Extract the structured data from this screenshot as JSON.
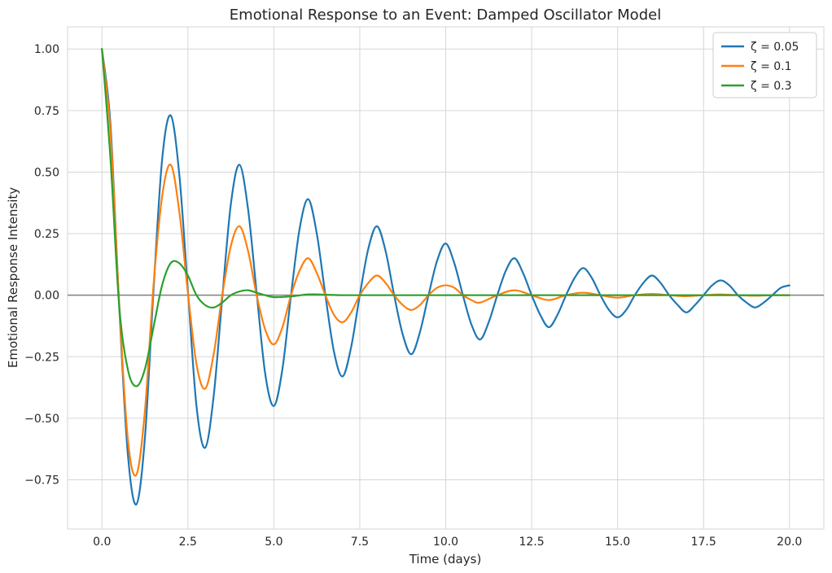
{
  "chart_data": {
    "type": "line",
    "title": "Emotional Response to an Event: Damped Oscillator Model",
    "xlabel": "Time (days)",
    "ylabel": "Emotional Response Intensity",
    "xlim": [
      -1.0,
      21.0
    ],
    "ylim": [
      -0.95,
      1.09
    ],
    "x_ticks": [
      0.0,
      2.5,
      5.0,
      7.5,
      10.0,
      12.5,
      15.0,
      17.5,
      20.0
    ],
    "x_tick_labels": [
      "0.0",
      "2.5",
      "5.0",
      "7.5",
      "10.0",
      "12.5",
      "15.0",
      "17.5",
      "20.0"
    ],
    "y_ticks": [
      -0.75,
      -0.5,
      -0.25,
      0.0,
      0.25,
      0.5,
      0.75,
      1.0
    ],
    "y_tick_labels": [
      "−0.75",
      "−0.50",
      "−0.25",
      "0.00",
      "0.25",
      "0.50",
      "0.75",
      "1.00"
    ],
    "grid": true,
    "legend_position": "top-right",
    "reference_line": {
      "y": 0.0,
      "color": "#808080"
    },
    "series": [
      {
        "name": "ζ = 0.05",
        "color": "#1f77b4",
        "x": [
          0,
          0.25,
          0.5,
          0.75,
          1.0,
          1.25,
          1.5,
          1.75,
          2.0,
          2.25,
          2.5,
          2.75,
          3.0,
          3.25,
          3.5,
          3.75,
          4.0,
          4.25,
          4.5,
          4.75,
          5.0,
          5.25,
          5.5,
          5.75,
          6.0,
          6.25,
          6.5,
          6.75,
          7.0,
          7.25,
          7.5,
          7.75,
          8.0,
          8.25,
          8.5,
          8.75,
          9.0,
          9.25,
          9.5,
          9.75,
          10.0,
          10.25,
          10.5,
          10.75,
          11.0,
          11.25,
          11.5,
          11.75,
          12.0,
          12.25,
          12.5,
          12.75,
          13.0,
          13.25,
          13.5,
          13.75,
          14.0,
          14.25,
          14.5,
          14.75,
          15.0,
          15.25,
          15.5,
          15.75,
          16.0,
          16.25,
          16.5,
          16.75,
          17.0,
          17.25,
          17.5,
          17.75,
          18.0,
          18.25,
          18.5,
          18.75,
          19.0,
          19.25,
          19.5,
          19.75,
          20.0
        ],
        "y": [
          1.0,
          0.69,
          -0.04,
          -0.64,
          -0.85,
          -0.58,
          0.02,
          0.55,
          0.73,
          0.49,
          0.02,
          -0.45,
          -0.62,
          -0.41,
          -0.01,
          0.37,
          0.53,
          0.35,
          0.01,
          -0.32,
          -0.45,
          -0.3,
          0.0,
          0.27,
          0.39,
          0.25,
          0.0,
          -0.23,
          -0.33,
          -0.21,
          0.0,
          0.19,
          0.28,
          0.18,
          0.0,
          -0.16,
          -0.24,
          -0.15,
          0.0,
          0.14,
          0.21,
          0.13,
          0.0,
          -0.12,
          -0.18,
          -0.11,
          0.0,
          0.1,
          0.15,
          0.09,
          0.0,
          -0.08,
          -0.13,
          -0.08,
          0.0,
          0.07,
          0.11,
          0.07,
          0.0,
          -0.06,
          -0.09,
          -0.06,
          0.0,
          0.05,
          0.08,
          0.05,
          0.0,
          -0.04,
          -0.07,
          -0.04,
          0.0,
          0.04,
          0.06,
          0.04,
          0.0,
          -0.03,
          -0.05,
          -0.03,
          0.0,
          0.03,
          0.04
        ]
      },
      {
        "name": "ζ = 0.1",
        "color": "#ff7f0e",
        "x": [
          0,
          0.25,
          0.5,
          0.75,
          1.0,
          1.25,
          1.5,
          1.75,
          2.0,
          2.25,
          2.5,
          2.75,
          3.0,
          3.25,
          3.5,
          3.75,
          4.0,
          4.25,
          4.5,
          4.75,
          5.0,
          5.25,
          5.5,
          5.75,
          6.0,
          6.25,
          6.5,
          6.75,
          7.0,
          7.25,
          7.5,
          7.75,
          8.0,
          8.25,
          8.5,
          8.75,
          9.0,
          9.25,
          9.5,
          9.75,
          10.0,
          10.25,
          10.5,
          10.75,
          11.0,
          11.5,
          12.0,
          12.5,
          13.0,
          13.5,
          14.0,
          14.5,
          15.0,
          15.5,
          16.0,
          16.5,
          17.0,
          17.5,
          18.0,
          18.5,
          19.0,
          19.5,
          20.0
        ],
        "y": [
          1.0,
          0.66,
          -0.03,
          -0.58,
          -0.73,
          -0.47,
          0.04,
          0.4,
          0.53,
          0.34,
          0.01,
          -0.28,
          -0.38,
          -0.24,
          0.0,
          0.2,
          0.28,
          0.18,
          0.0,
          -0.14,
          -0.2,
          -0.13,
          0.0,
          0.1,
          0.15,
          0.09,
          0.0,
          -0.08,
          -0.11,
          -0.07,
          0.0,
          0.05,
          0.08,
          0.05,
          0.0,
          -0.04,
          -0.06,
          -0.04,
          0.0,
          0.03,
          0.04,
          0.03,
          0.0,
          -0.02,
          -0.03,
          0.0,
          0.02,
          0.0,
          -0.02,
          0.0,
          0.01,
          0.0,
          -0.01,
          0.0,
          0.005,
          0.0,
          -0.004,
          0.0,
          0.003,
          0.0,
          -0.002,
          0.0,
          0.0
        ]
      },
      {
        "name": "ζ = 0.3",
        "color": "#2ca02c",
        "x": [
          0,
          0.25,
          0.5,
          0.75,
          1.0,
          1.25,
          1.5,
          1.75,
          2.0,
          2.25,
          2.5,
          2.75,
          3.0,
          3.25,
          3.5,
          3.75,
          4.0,
          4.25,
          4.5,
          4.75,
          5.0,
          5.5,
          6.0,
          6.5,
          7.0,
          7.5,
          8.0,
          9.0,
          10.0,
          12.0,
          14.0,
          16.0,
          18.0,
          20.0
        ],
        "y": [
          1.0,
          0.55,
          -0.04,
          -0.3,
          -0.37,
          -0.3,
          -0.13,
          0.04,
          0.13,
          0.13,
          0.08,
          0.0,
          -0.04,
          -0.05,
          -0.03,
          0.0,
          0.015,
          0.02,
          0.01,
          0.0,
          -0.008,
          -0.005,
          0.003,
          0.002,
          0.0,
          0.0,
          0.0,
          0.0,
          0.0,
          0.0,
          0.0,
          0.0,
          0.0,
          0.0
        ]
      }
    ]
  }
}
